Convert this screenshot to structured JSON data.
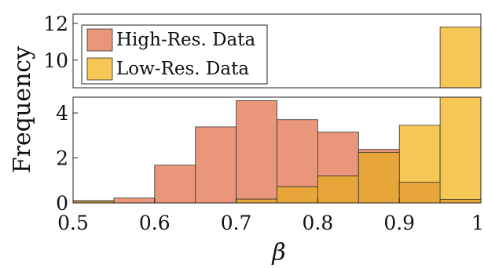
{
  "chart_data": {
    "type": "bar",
    "subtype": "overlaid-histogram-broken-y-axis",
    "xlabel": "β",
    "ylabel": "Frequency",
    "xlim": [
      0.5,
      1
    ],
    "x_ticks": [
      "0.5",
      "0.6",
      "0.7",
      "0.8",
      "0.9",
      "1"
    ],
    "upper_panel": {
      "ylim": [
        8.5,
        12.5
      ],
      "y_ticks": [
        "10",
        "12"
      ]
    },
    "lower_panel": {
      "ylim": [
        0,
        4.7
      ],
      "y_ticks": [
        "0",
        "2",
        "4"
      ]
    },
    "bin_edges": [
      0.5,
      0.55,
      0.6,
      0.65,
      0.7,
      0.75,
      0.8,
      0.85,
      0.9,
      0.95,
      1.0
    ],
    "legend_position": "top-left",
    "series": [
      {
        "name": "High-Res. Data",
        "color": "#e9967a",
        "values": [
          0.08,
          0.22,
          1.68,
          3.38,
          4.55,
          3.7,
          3.15,
          2.38,
          0.92,
          0.16
        ]
      },
      {
        "name": "Low-Res. Data",
        "color": "#f5c754",
        "values": [
          0.1,
          0.0,
          0.0,
          0.0,
          0.17,
          0.72,
          1.2,
          2.25,
          3.45,
          11.8
        ]
      }
    ],
    "overlap_color": "#e8a53a",
    "grid": false
  }
}
